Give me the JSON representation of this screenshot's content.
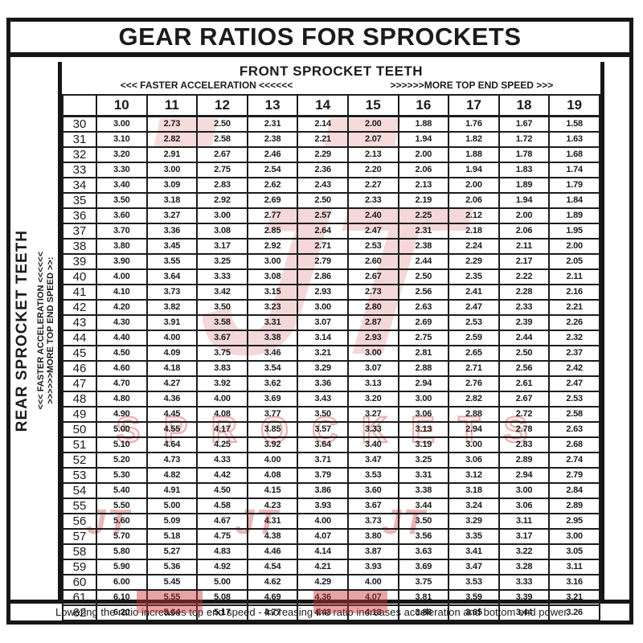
{
  "title": "GEAR RATIOS FOR SPROCKETS",
  "header": {
    "front_label": "FRONT SPROCKET TEETH",
    "faster_label": "<<< FASTER  ACCELERATION <<<<<<",
    "topend_label": ">>>>>>MORE TOP END SPEED >>>"
  },
  "sidebar": {
    "rear_label": "REAR SPROCKET TEETH",
    "faster_label": "<<< FASTER  ACCELERATION <<<<<<",
    "topend_label": ">>>>>>MORE TOP END SPEED >>:"
  },
  "watermark": {
    "letters": "JT",
    "word": "SPROCKETS",
    "color": "#cc3c3c"
  },
  "footer": {
    "note": "Lowering the ratio increases top end speed - Increasing the ratio increases acceleration and bottom end power."
  },
  "chart_data": {
    "type": "table",
    "title": "GEAR RATIOS FOR SPROCKETS",
    "x_axis_title": "FRONT SPROCKET TEETH",
    "y_axis_title": "REAR SPROCKET TEETH",
    "front_teeth": [
      "10",
      "11",
      "12",
      "13",
      "14",
      "15",
      "16",
      "17",
      "18",
      "19"
    ],
    "rear_teeth": [
      "30",
      "31",
      "32",
      "33",
      "34",
      "35",
      "36",
      "37",
      "38",
      "39",
      "40",
      "41",
      "42",
      "43",
      "44",
      "45",
      "46",
      "47",
      "48",
      "49",
      "50",
      "51",
      "52",
      "53",
      "54",
      "55",
      "56",
      "57",
      "58",
      "59",
      "60",
      "61",
      "62"
    ],
    "ratios": [
      [
        "3.00",
        "2.73",
        "2.50",
        "2.31",
        "2.14",
        "2.00",
        "1.88",
        "1.76",
        "1.67",
        "1.58"
      ],
      [
        "3.10",
        "2.82",
        "2.58",
        "2.38",
        "2.21",
        "2.07",
        "1.94",
        "1.82",
        "1.72",
        "1.63"
      ],
      [
        "3.20",
        "2.91",
        "2.67",
        "2.46",
        "2.29",
        "2.13",
        "2.00",
        "1.88",
        "1.78",
        "1.68"
      ],
      [
        "3.30",
        "3.00",
        "2.75",
        "2.54",
        "2.36",
        "2.20",
        "2.06",
        "1.94",
        "1.83",
        "1.74"
      ],
      [
        "3.40",
        "3.09",
        "2.83",
        "2.62",
        "2.43",
        "2.27",
        "2.13",
        "2.00",
        "1.89",
        "1.79"
      ],
      [
        "3.50",
        "3.18",
        "2.92",
        "2.69",
        "2.50",
        "2.33",
        "2.19",
        "2.06",
        "1.94",
        "1.84"
      ],
      [
        "3.60",
        "3.27",
        "3.00",
        "2.77",
        "2.57",
        "2.40",
        "2.25",
        "2.12",
        "2.00",
        "1.89"
      ],
      [
        "3.70",
        "3.36",
        "3.08",
        "2.85",
        "2.64",
        "2.47",
        "2.31",
        "2.18",
        "2.06",
        "1.95"
      ],
      [
        "3.80",
        "3.45",
        "3.17",
        "2.92",
        "2.71",
        "2.53",
        "2.38",
        "2.24",
        "2.11",
        "2.00"
      ],
      [
        "3.90",
        "3.55",
        "3.25",
        "3.00",
        "2.79",
        "2.60",
        "2.44",
        "2.29",
        "2.17",
        "2.05"
      ],
      [
        "4.00",
        "3.64",
        "3.33",
        "3.08",
        "2.86",
        "2.67",
        "2.50",
        "2.35",
        "2.22",
        "2.11"
      ],
      [
        "4.10",
        "3.73",
        "3.42",
        "3.15",
        "2.93",
        "2.73",
        "2.56",
        "2.41",
        "2.28",
        "2.16"
      ],
      [
        "4.20",
        "3.82",
        "3.50",
        "3.23",
        "3.00",
        "2.80",
        "2.63",
        "2.47",
        "2.33",
        "2.21"
      ],
      [
        "4.30",
        "3.91",
        "3.58",
        "3.31",
        "3.07",
        "2.87",
        "2.69",
        "2.53",
        "2.39",
        "2.26"
      ],
      [
        "4.40",
        "4.00",
        "3.67",
        "3.38",
        "3.14",
        "2.93",
        "2.75",
        "2.59",
        "2.44",
        "2.32"
      ],
      [
        "4.50",
        "4.09",
        "3.75",
        "3.46",
        "3.21",
        "3.00",
        "2.81",
        "2.65",
        "2.50",
        "2.37"
      ],
      [
        "4.60",
        "4.18",
        "3.83",
        "3.54",
        "3.29",
        "3.07",
        "2.88",
        "2.71",
        "2.56",
        "2.42"
      ],
      [
        "4.70",
        "4.27",
        "3.92",
        "3.62",
        "3.36",
        "3.13",
        "2.94",
        "2.76",
        "2.61",
        "2.47"
      ],
      [
        "4.80",
        "4.36",
        "4.00",
        "3.69",
        "3.43",
        "3.20",
        "3.00",
        "2.82",
        "2.67",
        "2.53"
      ],
      [
        "4.90",
        "4.45",
        "4.08",
        "3.77",
        "3.50",
        "3.27",
        "3.06",
        "2.88",
        "2.72",
        "2.58"
      ],
      [
        "5.00",
        "4.55",
        "4.17",
        "3.85",
        "3.57",
        "3.33",
        "3.13",
        "2.94",
        "2.78",
        "2.63"
      ],
      [
        "5.10",
        "4.64",
        "4.25",
        "3.92",
        "3.64",
        "3.40",
        "3.19",
        "3.00",
        "2.83",
        "2.68"
      ],
      [
        "5.20",
        "4.73",
        "4.33",
        "4.00",
        "3.71",
        "3.47",
        "3.25",
        "3.06",
        "2.89",
        "2.74"
      ],
      [
        "5.30",
        "4.82",
        "4.42",
        "4.08",
        "3.79",
        "3.53",
        "3.31",
        "3.12",
        "2.94",
        "2.79"
      ],
      [
        "5.40",
        "4.91",
        "4.50",
        "4.15",
        "3.86",
        "3.60",
        "3.38",
        "3.18",
        "3.00",
        "2.84"
      ],
      [
        "5.50",
        "5.00",
        "4.58",
        "4.23",
        "3.93",
        "3.67",
        "3.44",
        "3.24",
        "3.06",
        "2.89"
      ],
      [
        "5.60",
        "5.09",
        "4.67",
        "4.31",
        "4.00",
        "3.73",
        "3.50",
        "3.29",
        "3.11",
        "2.95"
      ],
      [
        "5.70",
        "5.18",
        "4.75",
        "4.38",
        "4.07",
        "3.80",
        "3.56",
        "3.35",
        "3.17",
        "3.00"
      ],
      [
        "5.80",
        "5.27",
        "4.83",
        "4.46",
        "4.14",
        "3.87",
        "3.63",
        "3.41",
        "3.22",
        "3.05"
      ],
      [
        "5.90",
        "5.36",
        "4.92",
        "4.54",
        "4.21",
        "3.93",
        "3.69",
        "3.47",
        "3.28",
        "3.11"
      ],
      [
        "6.00",
        "5.45",
        "5.00",
        "4.62",
        "4.29",
        "4.00",
        "3.75",
        "3.53",
        "3.33",
        "3.16"
      ],
      [
        "6.10",
        "5.55",
        "5.08",
        "4.69",
        "4.36",
        "4.07",
        "3.81",
        "3.59",
        "3.39",
        "3.21"
      ],
      [
        "6.20",
        "5.64",
        "5.17",
        "4.77",
        "4.43",
        "4.13",
        "3.88",
        "3.65",
        "3.44",
        "3.26"
      ]
    ]
  }
}
